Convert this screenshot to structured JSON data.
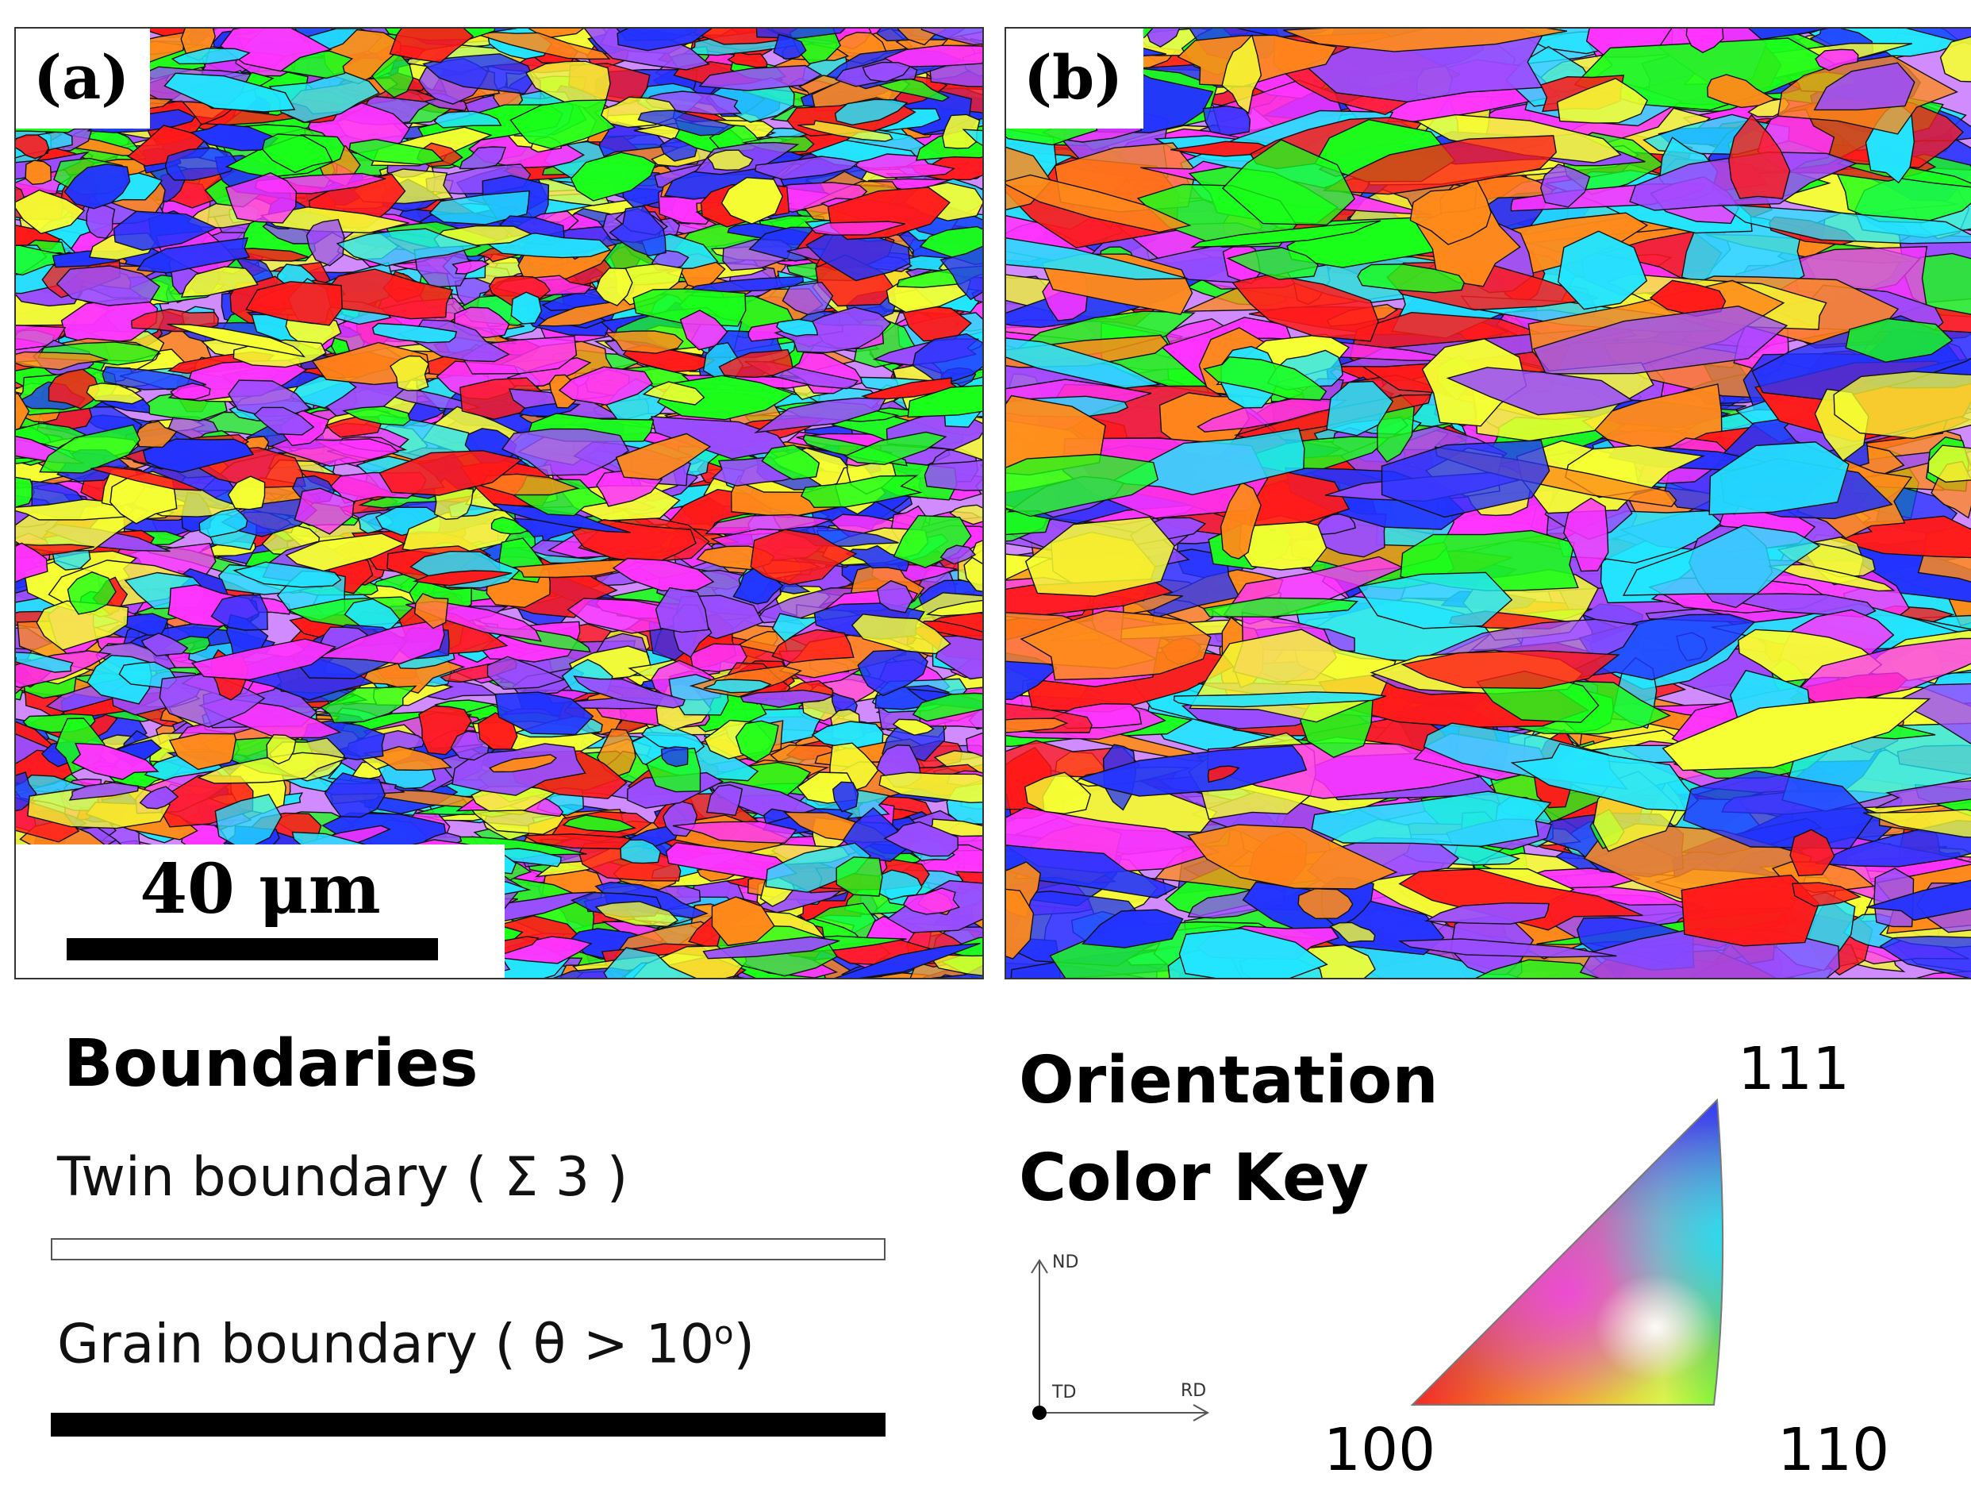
{
  "panels": [
    {
      "id": "a",
      "label": "(a)",
      "scalebar": "40 μm"
    },
    {
      "id": "b",
      "label": "(b)"
    }
  ],
  "boundaries_legend": {
    "title": "Boundaries",
    "twin_label": "Twin boundary ( Σ 3 )",
    "grain_label_main": "Grain boundary ( θ > 10",
    "grain_label_sup": "o",
    "grain_label_end": ")"
  },
  "orientation_key": {
    "title_line1": "Orientation",
    "title_line2": "Color Key",
    "corner_111": "111",
    "corner_100": "100",
    "corner_110": "110",
    "axes": {
      "nd": "ND",
      "td": "TD",
      "rd": "RD"
    }
  },
  "colors": {
    "red_100": "#ff1a1a",
    "green_110": "#1aff1a",
    "blue_111": "#2233ff",
    "magenta": "#ff33ff",
    "cyan": "#22e5ff",
    "orange": "#ff8a1a",
    "purple": "#9a4dff",
    "yellow": "#f5ff33"
  }
}
